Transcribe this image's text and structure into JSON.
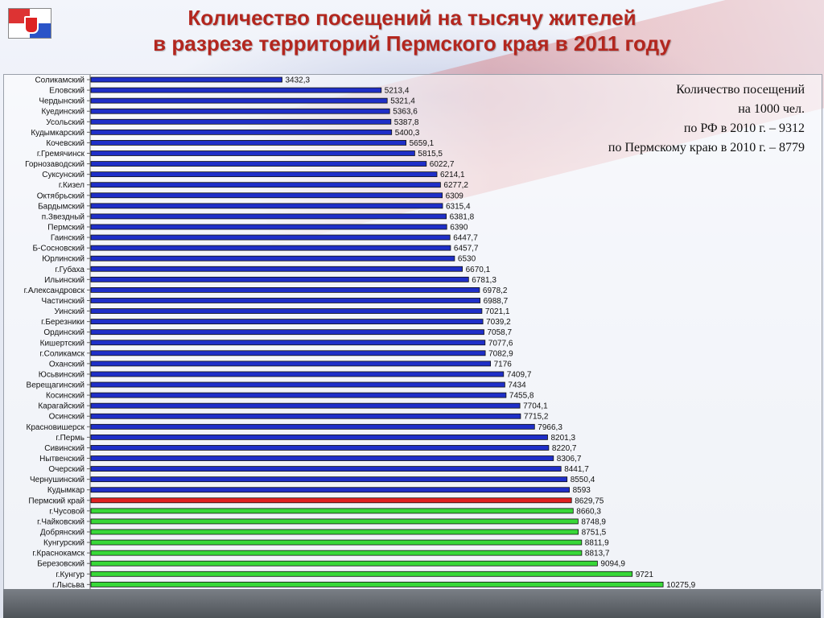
{
  "header": {
    "title_line1": "Количество посещений на тысячу жителей",
    "title_line2": "в разрезе территорий Пермского края в 2011 году"
  },
  "info": {
    "line1": "Количество посещений",
    "line2": "на 1000 чел.",
    "line3": "по РФ в 2010 г. – 9312",
    "line4": "по Пермскому краю в 2010 г. – 8779"
  },
  "colors": {
    "blue": "#1f2fc8",
    "red": "#e02020",
    "green": "#38d838",
    "title": "#b3261e"
  },
  "chart_data": {
    "type": "bar",
    "orientation": "horizontal",
    "title": "Количество посещений на тысячу жителей в разрезе территорий Пермского края в 2011 году",
    "xlabel": "",
    "ylabel": "",
    "grid": false,
    "categories": [
      "Соликамский",
      "Еловский",
      "Чердынский",
      "Куединский",
      "Усольский",
      "Кудымкарский",
      "Кочевский",
      "г.Гремячинск",
      "Горнозаводский",
      "Суксунский",
      "г.Кизел",
      "Октябрьский",
      "Бардымский",
      "п.Звездный",
      "Пермский",
      "Гаинский",
      "Б-Сосновский",
      "Юрлинский",
      "г.Губаха",
      "Ильинский",
      "г.Александровск",
      "Частинский",
      "Уинский",
      "г.Березники",
      "Ординский",
      "Кишертский",
      "г.Соликамск",
      "Оханский",
      "Юсьвинский",
      "Верещагинский",
      "Косинский",
      "Карагайский",
      "Осинский",
      "Красновишерск",
      "г.Пермь",
      "Сивинский",
      "Нытвенский",
      "Очерский",
      "Чернушинский",
      "Кудымкар",
      "Пермский край",
      "г.Чусовой",
      "г.Чайковский",
      "Добрянский",
      "Кунгурский",
      "г.Краснокамск",
      "Березовский",
      "г.Кунгур",
      "г.Лысьва"
    ],
    "values": [
      3432.3,
      5213.4,
      5321.4,
      5363.6,
      5387.8,
      5400.3,
      5659.1,
      5815.5,
      6022.7,
      6214.1,
      6277.2,
      6309,
      6315.4,
      6381.8,
      6390,
      6447.7,
      6457.7,
      6530,
      6670.1,
      6781.3,
      6978.2,
      6988.7,
      7021.1,
      7039.2,
      7058.7,
      7077.6,
      7082.9,
      7176,
      7409.7,
      7434,
      7455.8,
      7704.1,
      7715.2,
      7966.3,
      8201.3,
      8220.7,
      8306.7,
      8441.7,
      8550.4,
      8593,
      8629.75,
      8660.3,
      8748.9,
      8751.5,
      8811.9,
      8813.7,
      9094.9,
      9721,
      10275.9
    ],
    "value_labels": [
      "3432,3",
      "5213,4",
      "5321,4",
      "5363,6",
      "5387,8",
      "5400,3",
      "5659,1",
      "5815,5",
      "6022,7",
      "6214,1",
      "6277,2",
      "6309",
      "6315,4",
      "6381,8",
      "6390",
      "6447,7",
      "6457,7",
      "6530",
      "6670,1",
      "6781,3",
      "6978,2",
      "6988,7",
      "7021,1",
      "7039,2",
      "7058,7",
      "7077,6",
      "7082,9",
      "7176",
      "7409,7",
      "7434",
      "7455,8",
      "7704,1",
      "7715,2",
      "7966,3",
      "8201,3",
      "8220,7",
      "8306,7",
      "8441,7",
      "8550,4",
      "8593",
      "8629,75",
      "8660,3",
      "8748,9",
      "8751,5",
      "8811,9",
      "8813,7",
      "9094,9",
      "9721",
      "10275,9"
    ],
    "bar_color_groups": [
      "blue",
      "blue",
      "blue",
      "blue",
      "blue",
      "blue",
      "blue",
      "blue",
      "blue",
      "blue",
      "blue",
      "blue",
      "blue",
      "blue",
      "blue",
      "blue",
      "blue",
      "blue",
      "blue",
      "blue",
      "blue",
      "blue",
      "blue",
      "blue",
      "blue",
      "blue",
      "blue",
      "blue",
      "blue",
      "blue",
      "blue",
      "blue",
      "blue",
      "blue",
      "blue",
      "blue",
      "blue",
      "blue",
      "blue",
      "blue",
      "red",
      "green",
      "green",
      "green",
      "green",
      "green",
      "green",
      "green",
      "green"
    ],
    "xlim": [
      0,
      12000
    ]
  }
}
